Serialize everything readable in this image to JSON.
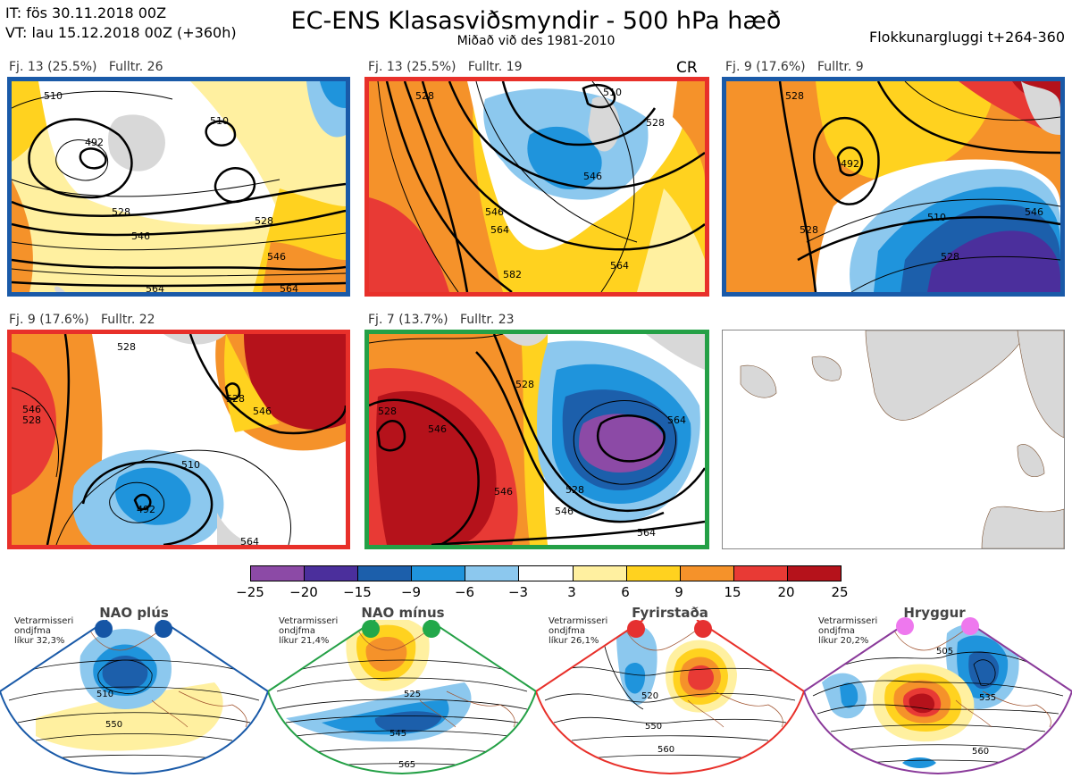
{
  "header": {
    "it": "IT: fös 30.11.2018 00Z",
    "vt": "VT: lau 15.12.2018 00Z  (+360h)",
    "title": "EC-ENS Klasasviðsmyndir - 500 hPa hæð",
    "subtitle": "Miðað við des 1981-2010",
    "window": "Flokkunargluggi t+264-360"
  },
  "panels": [
    {
      "label": "Fj. 13 (25.5%)   Fulltr. 26",
      "border": "#1a5aa8",
      "contours": [
        "510",
        "492",
        "510",
        "528",
        "546",
        "528",
        "546",
        "564",
        "564"
      ]
    },
    {
      "label": "Fj. 13 (25.5%)   Fulltr. 19",
      "tag": "CR",
      "border": "#e8302a",
      "contours": [
        "528",
        "510",
        "528",
        "546",
        "546",
        "564",
        "582",
        "564"
      ]
    },
    {
      "label": "Fj. 9 (17.6%)   Fulltr. 9",
      "border": "#1a5aa8",
      "contours": [
        "528",
        "492",
        "528",
        "510",
        "528",
        "546"
      ]
    },
    {
      "label": "Fj. 9 (17.6%)   Fulltr. 22",
      "border": "#e8302a",
      "contours": [
        "528",
        "546",
        "528",
        "510",
        "492",
        "528",
        "546",
        "564"
      ]
    },
    {
      "label": "Fj. 7 (13.7%)   Fulltr. 23",
      "border": "#24a046",
      "contours": [
        "528",
        "528",
        "546",
        "546",
        "564",
        "528",
        "546",
        "564"
      ]
    }
  ],
  "colorbar": {
    "ticks": [
      "−25",
      "−20",
      "−15",
      "−9",
      "−6",
      "−3",
      "3",
      "6",
      "9",
      "15",
      "20",
      "25"
    ],
    "colors": [
      "#8c4aa6",
      "#4b2f9c",
      "#1c5fab",
      "#1f94dc",
      "#8cc8ee",
      "#ffffff",
      "#fff0a0",
      "#ffd21f",
      "#f5922a",
      "#e83a35",
      "#b5121b"
    ]
  },
  "regimes": [
    {
      "title": "NAO plús",
      "note": [
        "Vetrarmisseri",
        "ondjfma",
        "líkur 32,3%"
      ],
      "border": "#1a5aa8",
      "dot": "#1555a5",
      "contours": [
        "510",
        "550"
      ]
    },
    {
      "title": "NAO mínus",
      "note": [
        "Vetrarmisseri",
        "ondjfma",
        "líkur 21,4%"
      ],
      "border": "#24a046",
      "dot": "#22a84a",
      "contours": [
        "525",
        "545",
        "565"
      ]
    },
    {
      "title": "Fyrirstaða",
      "note": [
        "Vetrarmisseri",
        "ondjfma",
        "líkur 26,1%"
      ],
      "border": "#e8302a",
      "dot": "#e53030",
      "contours": [
        "520",
        "550",
        "560"
      ]
    },
    {
      "title": "Hryggur",
      "note": [
        "Vetrarmisseri",
        "ondjfma",
        "líkur 20,2%"
      ],
      "border": "#8a3a9a",
      "dot": "#ee78ee",
      "contours": [
        "505",
        "535",
        "560"
      ]
    }
  ]
}
